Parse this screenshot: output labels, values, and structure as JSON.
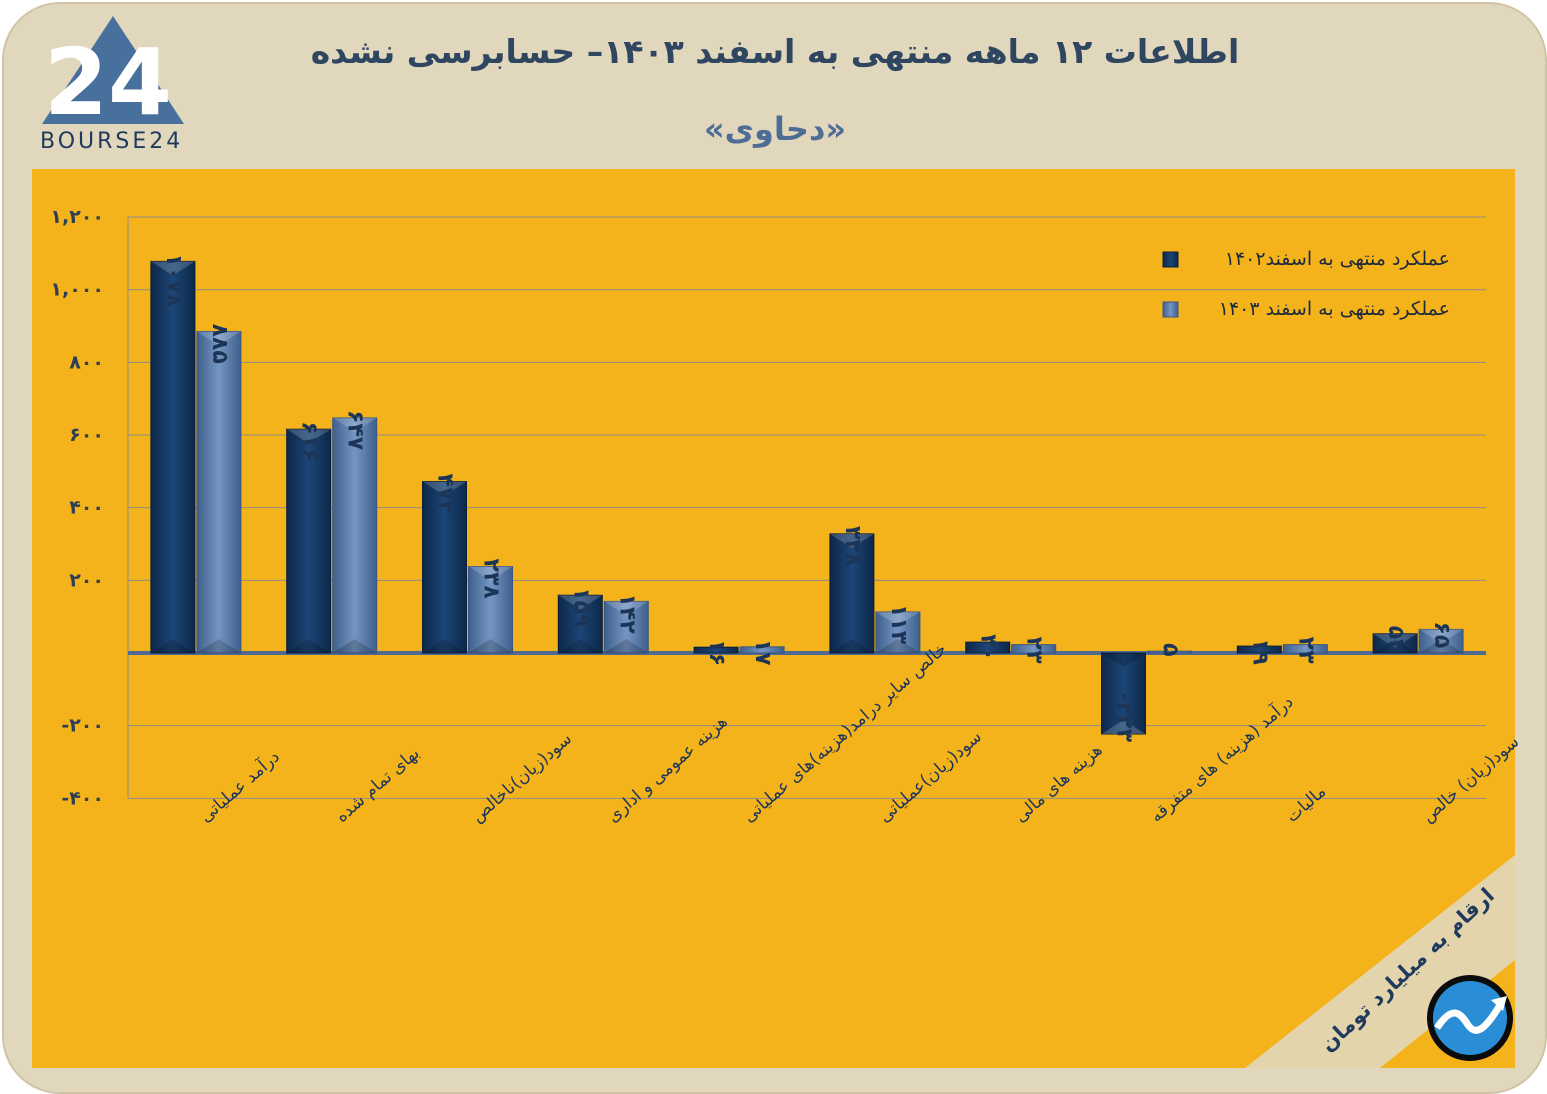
{
  "header": {
    "title": "اطلاعات ۱۲ ماهه منتهی به اسفند  ۱۴۰۳– حسابرسی نشده",
    "subtitle": "«دحاوی»",
    "logo_text": "BOURSE24",
    "logo_mark": "24"
  },
  "footer": {
    "unit_note": "ارقام به میلیارد تومان"
  },
  "colors": {
    "panel": "#f5b31b",
    "frame": "#e1d7bd",
    "series1": "#163863",
    "series2": "#5f82b2",
    "axis": "#4f6a93"
  },
  "chart_data": {
    "type": "bar",
    "categories": [
      "درآمد عملیاتی",
      "بهای تمام شده",
      "سود(زیان)ناخالص",
      "هزینه عمومی و اداری",
      "خالص سایر درامد(هزینه)های عملیاتی",
      "سود(زیان)عملیاتی",
      "هزینه های مالی",
      "درآمد (هزینه) های متفرقه",
      "مالیات",
      "سود(زیان) خالص"
    ],
    "series": [
      {
        "name": "عملکرد منتهی به اسفند۱۴۰۲",
        "values": [
          1078,
          616,
          472,
          159,
          16,
          328,
          30,
          -223,
          19,
          53
        ],
        "labels": [
          "۱۰۷۸",
          "۶۱۶",
          "۴۷۲",
          "۱۵۹",
          "۱۶",
          "۳۲۸",
          "۳۰",
          "-۲۲۳",
          "۱۹",
          "۵۳"
        ]
      },
      {
        "name": "عملکرد منتهی به اسفند ۱۴۰۳",
        "values": [
          885,
          647,
          238,
          142,
          17,
          113,
          23,
          5,
          23,
          65
        ],
        "labels": [
          "۸۸۵",
          "۶۴۷",
          "۲۳۸",
          "۱۴۲",
          "۱۷",
          "۱۱۳",
          "۲۳",
          "۵",
          "۲۳",
          "۶۵"
        ]
      }
    ],
    "yticks": [
      1200,
      1000,
      800,
      600,
      400,
      200,
      -200,
      -400
    ],
    "ytick_labels": [
      "۱,۲۰۰",
      "۱,۰۰۰",
      "۸۰۰",
      "۶۰۰",
      "۴۰۰",
      "۲۰۰",
      "-۲۰۰",
      "-۴۰۰"
    ],
    "ylim": [
      -400,
      1200
    ],
    "grid": true,
    "legend_position": "top-right"
  }
}
